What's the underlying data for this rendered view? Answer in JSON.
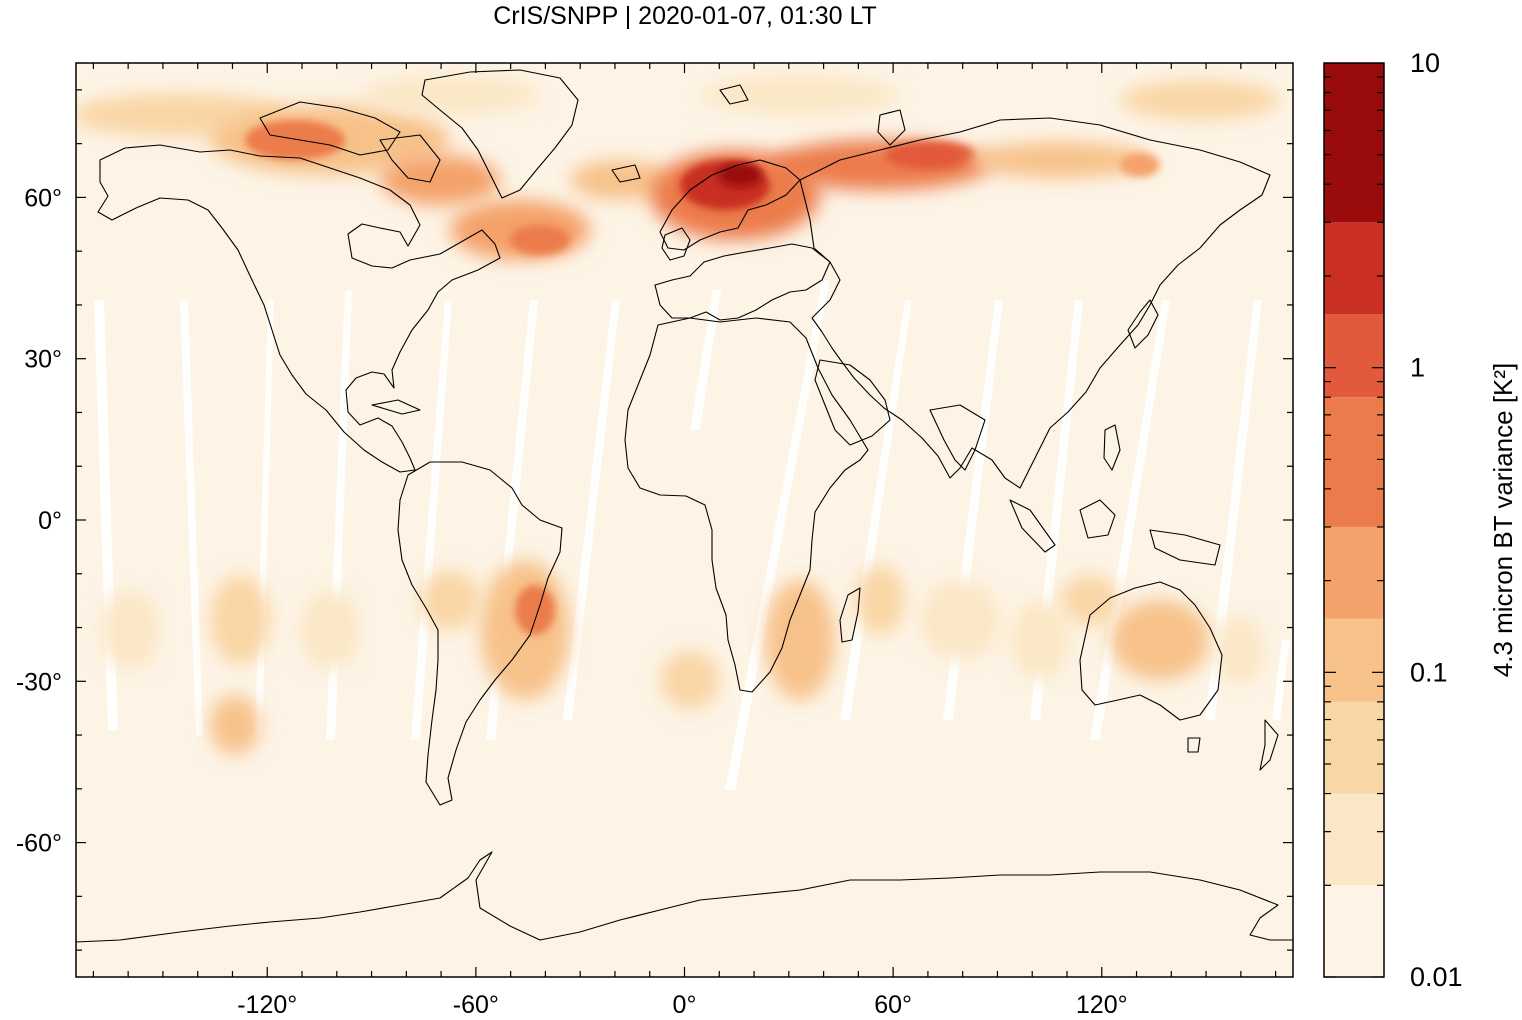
{
  "title": "CrIS/SNPP | 2020-01-07, 01:30 LT",
  "map": {
    "projection": "equirectangular",
    "lon_range": [
      -175,
      175
    ],
    "lat_range": [
      -85,
      85
    ],
    "x_ticks": [
      {
        "value": -120,
        "label": "-120°"
      },
      {
        "value": -60,
        "label": "-60°"
      },
      {
        "value": 0,
        "label": "0°"
      },
      {
        "value": 60,
        "label": "60°"
      },
      {
        "value": 120,
        "label": "120°"
      }
    ],
    "y_ticks": [
      {
        "value": 60,
        "label": "60°"
      },
      {
        "value": 30,
        "label": "30°"
      },
      {
        "value": 0,
        "label": "0°"
      },
      {
        "value": -30,
        "label": "-30°"
      },
      {
        "value": -60,
        "label": "-60°"
      }
    ],
    "background_color": "#fdf4e6",
    "swath_gap_color": "#ffffff",
    "coastline_color": "#000000",
    "hotspots": [
      {
        "region": "Canadian Arctic",
        "lon": -110,
        "lat": 70,
        "level": 0.4
      },
      {
        "region": "Hudson Strait / Labrador",
        "lon": -60,
        "lat": 58,
        "level": 0.25
      },
      {
        "region": "Scandinavia",
        "lon": 15,
        "lat": 64,
        "level": 2.5
      },
      {
        "region": "Northern Russia",
        "lon": 70,
        "lat": 67,
        "level": 0.6
      },
      {
        "region": "Southern Brazil",
        "lon": -45,
        "lat": -18,
        "level": 0.15
      },
      {
        "region": "Southern Africa",
        "lon": 30,
        "lat": -20,
        "level": 0.1
      },
      {
        "region": "Northern Australia",
        "lon": 135,
        "lat": -22,
        "level": 0.08
      },
      {
        "region": "South Pacific",
        "lon": -125,
        "lat": -38,
        "level": 0.06
      }
    ]
  },
  "colorbar": {
    "label": "4.3 micron BT variance [K²]",
    "scale": "log",
    "range": [
      0.01,
      10
    ],
    "tick_labels": [
      "10",
      "1",
      "0.1",
      "0.01"
    ],
    "tick_values": [
      10,
      1,
      0.1,
      0.01
    ],
    "levels": [
      {
        "min": 0.01,
        "max": 0.02,
        "color": "#fdf4e6"
      },
      {
        "min": 0.02,
        "max": 0.04,
        "color": "#fbe7c6"
      },
      {
        "min": 0.04,
        "max": 0.08,
        "color": "#f9d6a6"
      },
      {
        "min": 0.08,
        "max": 0.15,
        "color": "#f7c28a"
      },
      {
        "min": 0.15,
        "max": 0.3,
        "color": "#f4a26b"
      },
      {
        "min": 0.3,
        "max": 0.8,
        "color": "#ec7b4c"
      },
      {
        "min": 0.8,
        "max": 1.5,
        "color": "#e25a3b"
      },
      {
        "min": 1.5,
        "max": 3,
        "color": "#c92f22"
      },
      {
        "min": 3,
        "max": 10,
        "color": "#9a0c0c"
      }
    ]
  }
}
